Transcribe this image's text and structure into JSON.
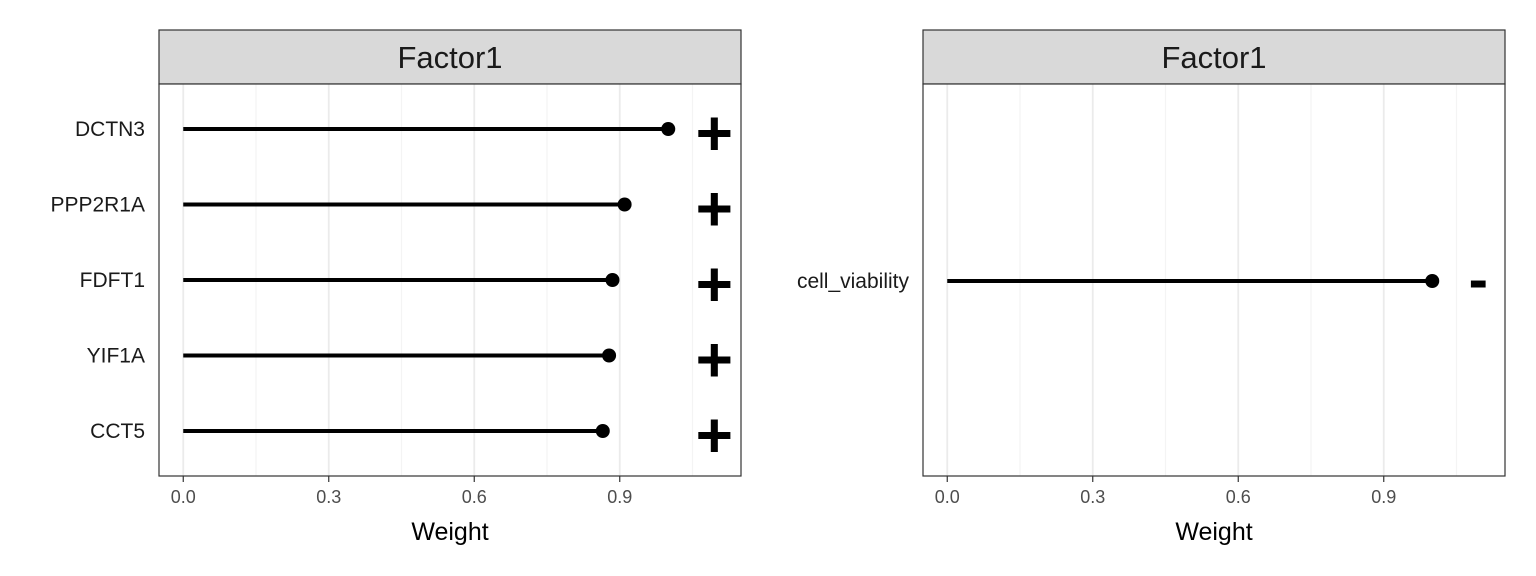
{
  "chart_data": [
    {
      "type": "lollipop",
      "strip_title": "Factor1",
      "xlabel": "Weight",
      "xlim": [
        -0.05,
        1.15
      ],
      "xticks": [
        "0.0",
        "0.3",
        "0.6",
        "0.9"
      ],
      "xtick_values": [
        0.0,
        0.3,
        0.6,
        0.9
      ],
      "grid": true,
      "categories": [
        "DCTN3",
        "PPP2R1A",
        "FDFT1",
        "YIF1A",
        "CCT5"
      ],
      "values": [
        1.0,
        0.91,
        0.885,
        0.878,
        0.865
      ],
      "signs": [
        "+",
        "+",
        "+",
        "+",
        "+"
      ]
    },
    {
      "type": "lollipop",
      "strip_title": "Factor1",
      "xlabel": "Weight",
      "xlim": [
        -0.05,
        1.15
      ],
      "xticks": [
        "0.0",
        "0.3",
        "0.6",
        "0.9"
      ],
      "xtick_values": [
        0.0,
        0.3,
        0.6,
        0.9
      ],
      "grid": true,
      "categories": [
        "cell_viability"
      ],
      "values": [
        1.0
      ],
      "signs": [
        "-"
      ]
    }
  ],
  "colors": {
    "strip_fill": "#d9d9d9",
    "frame": "#333333",
    "grid_major": "#ebebeb",
    "grid_minor": "#f4f4f4",
    "mark": "#000000"
  }
}
